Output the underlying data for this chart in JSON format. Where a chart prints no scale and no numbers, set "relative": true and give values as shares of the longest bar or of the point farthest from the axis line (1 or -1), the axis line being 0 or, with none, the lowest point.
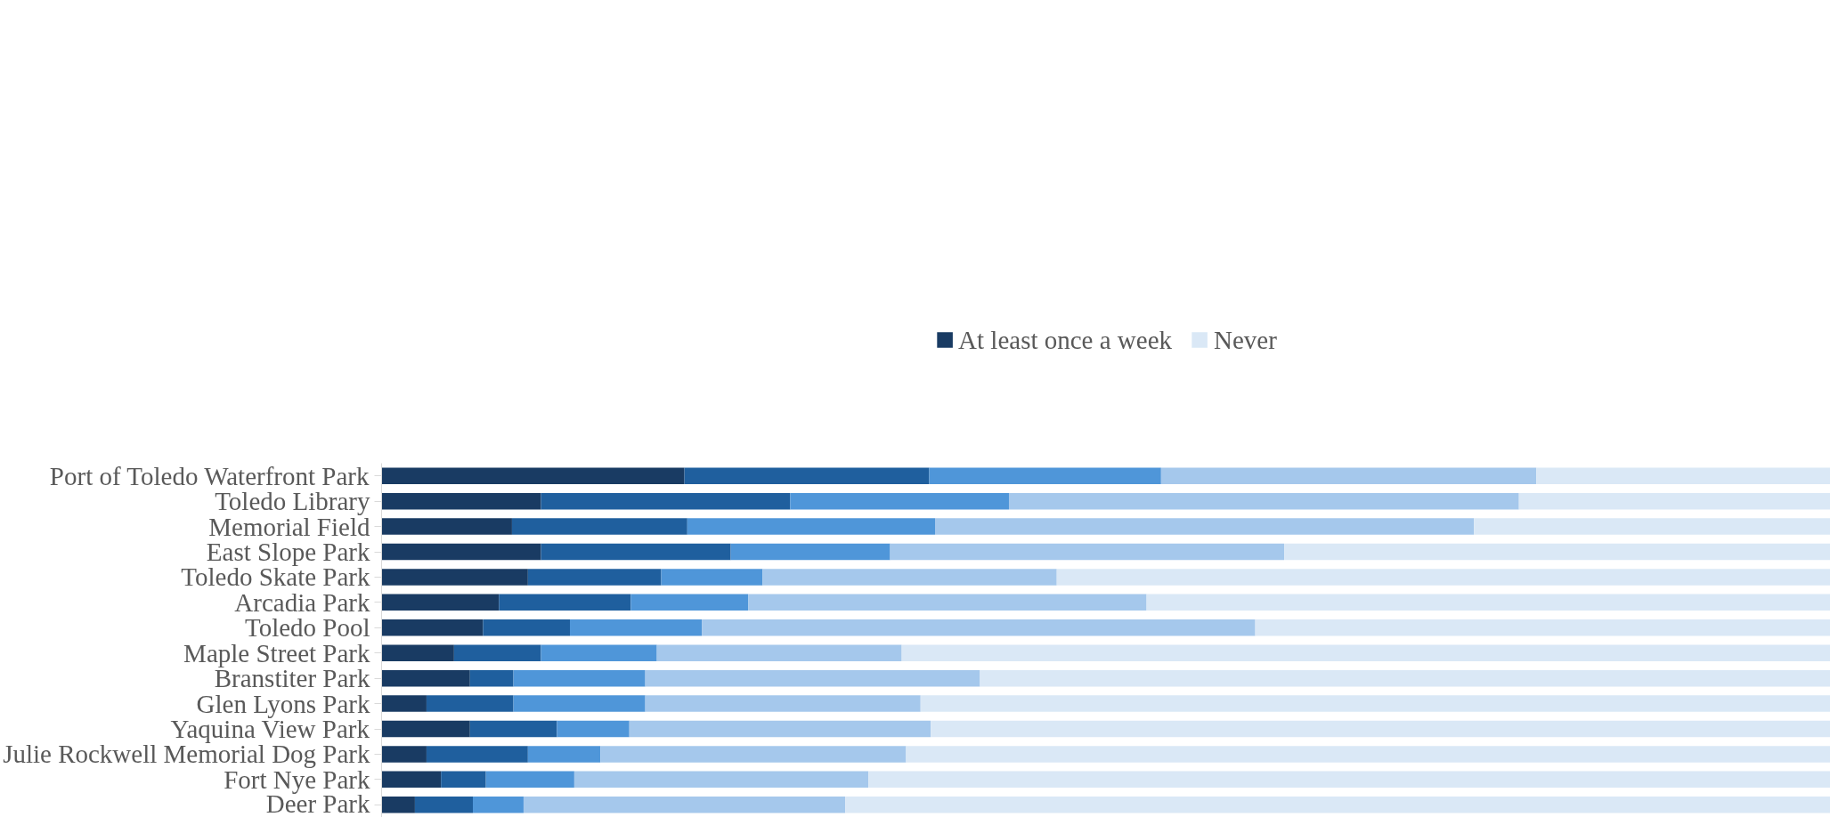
{
  "chart_data": {
    "type": "bar",
    "orientation": "horizontal",
    "stacked": true,
    "relative": true,
    "legend": "top",
    "grid": false,
    "categories": [
      "Port of Toledo Waterfront Park",
      "Toledo Library",
      "Memorial Field",
      "East Slope Park",
      "Toledo Skate Park",
      "Arcadia Park",
      "Toledo Pool",
      "Maple Street Park",
      "Branstiter Park",
      "Glen Lyons Park",
      "Yaquina View Park",
      "Julie Rockwell Memorial Dog Park",
      "Fort Nye Park",
      "Deer Park"
    ],
    "series": [
      {
        "name": "At least once a week",
        "color": "#193b63",
        "values": [
          0.209,
          0.11,
          0.09,
          0.11,
          0.101,
          0.081,
          0.07,
          0.05,
          0.061,
          0.031,
          0.061,
          0.031,
          0.041,
          0.023
        ]
      },
      {
        "color": "#1f5f9e",
        "values": [
          0.169,
          0.172,
          0.121,
          0.131,
          0.092,
          0.091,
          0.06,
          0.06,
          0.03,
          0.06,
          0.06,
          0.07,
          0.031,
          0.04
        ]
      },
      {
        "color": "#4f96d9",
        "values": [
          0.16,
          0.151,
          0.171,
          0.11,
          0.07,
          0.081,
          0.091,
          0.08,
          0.091,
          0.091,
          0.05,
          0.05,
          0.061,
          0.035
        ]
      },
      {
        "color": "#a5c8ec",
        "values": [
          0.259,
          0.352,
          0.372,
          0.272,
          0.203,
          0.275,
          0.382,
          0.169,
          0.231,
          0.19,
          0.208,
          0.211,
          0.203,
          0.222
        ]
      },
      {
        "name": "Never",
        "color": "#dae8f6",
        "values": [
          0.203,
          0.215,
          0.246,
          0.377,
          0.534,
          0.472,
          0.397,
          0.641,
          0.587,
          0.628,
          0.621,
          0.638,
          0.664,
          0.68
        ]
      }
    ]
  }
}
